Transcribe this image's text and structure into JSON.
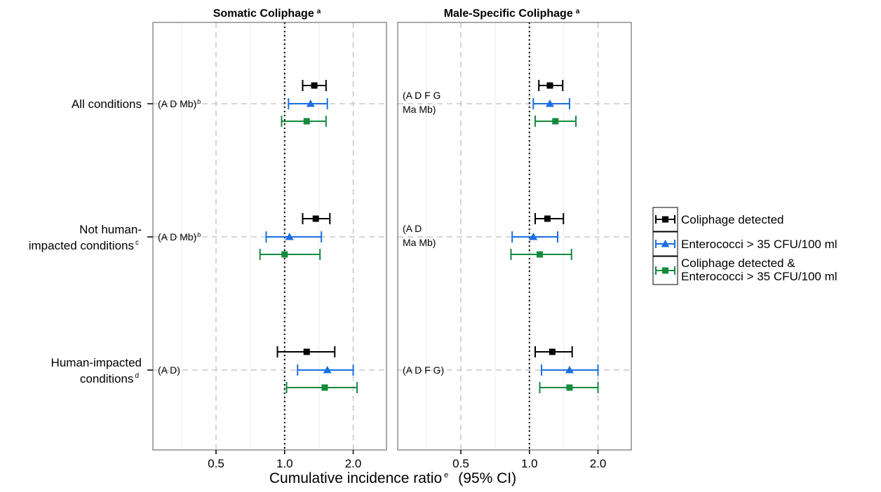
{
  "chart_data": {
    "type": "forest",
    "x_axis_label": "Cumulative incidence ratio",
    "x_axis_label_sup": "e",
    "x_axis_label_suffix": "(95% CI)",
    "x_scale": "log2",
    "x_range": [
      0.2642,
      2.8
    ],
    "x_ticks": [
      0.5,
      1.0,
      2.0
    ],
    "x_tick_labels": [
      "0.5",
      "1.0",
      "2.0"
    ],
    "minor_ticks": [
      0.3536,
      0.7071,
      1.4142,
      2.8284
    ],
    "reference_line": 1.0,
    "grid": true,
    "legend_position": "right",
    "series": [
      {
        "name": "Coliphage detected",
        "color": "#000000",
        "marker": "square"
      },
      {
        "name": "Enterococci > 35 CFU/100 ml",
        "color": "#1a6fe0",
        "marker": "triangle"
      },
      {
        "name": "Coliphage detected & Enterococci > 35 CFU/100 ml",
        "color": "#138a3c",
        "marker": "square"
      }
    ],
    "legend_lines": [
      [
        "Coliphage detected"
      ],
      [
        "Enterococci > 35 CFU/100 ml"
      ],
      [
        "Coliphage detected &",
        "Enterococci > 35 CFU/100 ml"
      ]
    ],
    "conditions": [
      {
        "lines": [
          "All conditions"
        ],
        "sup": ""
      },
      {
        "lines": [
          "Not human-",
          "impacted conditions"
        ],
        "sup": "c"
      },
      {
        "lines": [
          "Human-impacted",
          "conditions"
        ],
        "sup": "d"
      }
    ],
    "panels": [
      {
        "title": "Somatic Coliphage",
        "title_sup": "a",
        "groups": [
          {
            "annotation": [
              "(A D Mb)"
            ],
            "annotation_sup": "b",
            "points": [
              {
                "est": 1.35,
                "lo": 1.2,
                "hi": 1.52
              },
              {
                "est": 1.3,
                "lo": 1.04,
                "hi": 1.54
              },
              {
                "est": 1.25,
                "lo": 0.97,
                "hi": 1.52
              }
            ]
          },
          {
            "annotation": [
              "(A D Mb)"
            ],
            "annotation_sup": "b",
            "points": [
              {
                "est": 1.37,
                "lo": 1.2,
                "hi": 1.58
              },
              {
                "est": 1.05,
                "lo": 0.83,
                "hi": 1.45
              },
              {
                "est": 1.0,
                "lo": 0.78,
                "hi": 1.43
              }
            ]
          },
          {
            "annotation": [
              "(A D)"
            ],
            "annotation_sup": "",
            "points": [
              {
                "est": 1.25,
                "lo": 0.93,
                "hi": 1.66
              },
              {
                "est": 1.54,
                "lo": 1.14,
                "hi": 2.0
              },
              {
                "est": 1.5,
                "lo": 1.02,
                "hi": 2.08
              }
            ]
          }
        ]
      },
      {
        "title": "Male-Specific Coliphage",
        "title_sup": "a",
        "groups": [
          {
            "annotation": [
              "(A D F G",
              "Ma Mb)"
            ],
            "annotation_sup": "",
            "points": [
              {
                "est": 1.23,
                "lo": 1.1,
                "hi": 1.4
              },
              {
                "est": 1.23,
                "lo": 1.04,
                "hi": 1.5
              },
              {
                "est": 1.3,
                "lo": 1.06,
                "hi": 1.6
              }
            ]
          },
          {
            "annotation": [
              "(A D",
              "Ma Mb)"
            ],
            "annotation_sup": "",
            "points": [
              {
                "est": 1.2,
                "lo": 1.06,
                "hi": 1.41
              },
              {
                "est": 1.04,
                "lo": 0.84,
                "hi": 1.33
              },
              {
                "est": 1.11,
                "lo": 0.83,
                "hi": 1.53
              }
            ]
          },
          {
            "annotation": [
              "(A D F G)"
            ],
            "annotation_sup": "",
            "points": [
              {
                "est": 1.26,
                "lo": 1.06,
                "hi": 1.54
              },
              {
                "est": 1.5,
                "lo": 1.13,
                "hi": 2.0
              },
              {
                "est": 1.5,
                "lo": 1.11,
                "hi": 2.0
              }
            ]
          }
        ]
      }
    ]
  }
}
